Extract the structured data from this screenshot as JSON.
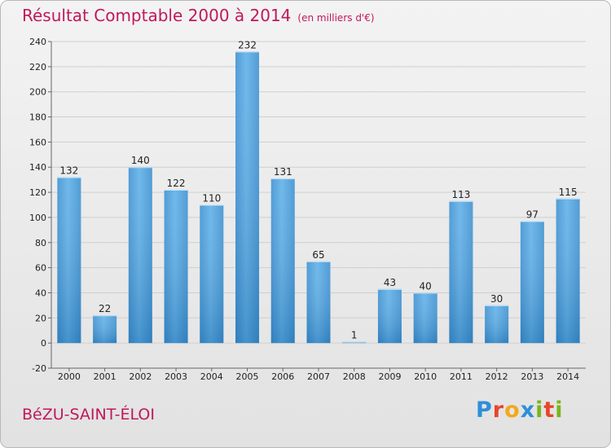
{
  "chart_data": {
    "type": "bar",
    "title": "Résultat Comptable 2000 à 2014",
    "subtitle": "(en milliers d'€)",
    "categories": [
      "2000",
      "2001",
      "2002",
      "2003",
      "2004",
      "2005",
      "2006",
      "2007",
      "2008",
      "2009",
      "2010",
      "2011",
      "2012",
      "2013",
      "2014"
    ],
    "values": [
      132,
      22,
      140,
      122,
      110,
      232,
      131,
      65,
      1,
      43,
      40,
      113,
      30,
      97,
      115
    ],
    "ylim": [
      -20,
      240
    ],
    "yticks": [
      -20,
      0,
      20,
      40,
      60,
      80,
      100,
      120,
      140,
      160,
      180,
      200,
      220,
      240
    ],
    "grid": true,
    "xlabel": "",
    "ylabel": ""
  },
  "commune": "BéZU-SAINT-ÉLOI",
  "logo": {
    "letters": [
      "P",
      "r",
      "o",
      "x",
      "i",
      "t",
      "i"
    ],
    "colors": [
      "#2e8fd8",
      "#e8462a",
      "#f2a81d",
      "#2e8fd8",
      "#7ab51d",
      "#e8462a",
      "#7ab51d"
    ]
  },
  "colors": {
    "accent": "#c0185a",
    "bar_light": "#5dafe8",
    "bar_dark": "#2777b8",
    "grid": "#cfcfcf"
  }
}
